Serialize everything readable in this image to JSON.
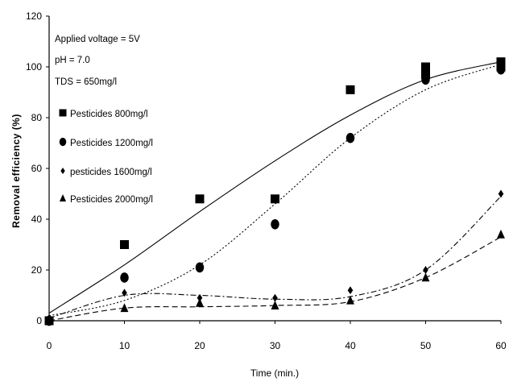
{
  "chart_data": {
    "type": "scatter",
    "xlabel": "Time (min.)",
    "ylabel": "Removal efficiency (%)",
    "xlim": [
      0,
      60
    ],
    "ylim": [
      0,
      120
    ],
    "x_ticks": [
      0,
      10,
      20,
      30,
      40,
      50,
      60
    ],
    "y_ticks": [
      0,
      20,
      40,
      60,
      80,
      100,
      120
    ],
    "grid": false,
    "annotations": [
      "Applied voltage = 5V",
      "pH = 7.0",
      "TDS = 650mg/l"
    ],
    "legend_position": "upper-left",
    "series": [
      {
        "name": "Pesticides 800mg/l",
        "marker": "square",
        "points": [
          [
            0,
            0
          ],
          [
            10,
            30
          ],
          [
            20,
            48
          ],
          [
            30,
            48
          ],
          [
            40,
            91
          ],
          [
            50,
            100
          ],
          [
            50,
            97
          ],
          [
            60,
            102
          ],
          [
            60,
            100
          ]
        ],
        "curve_x": [
          0,
          10,
          20,
          30,
          40,
          50,
          60
        ],
        "curve_y": [
          3,
          22,
          43,
          63,
          81,
          95,
          102
        ],
        "curve_style": "solid"
      },
      {
        "name": "Pesticides 1200mg/l",
        "marker": "circle",
        "points": [
          [
            0,
            0
          ],
          [
            10,
            17
          ],
          [
            20,
            21
          ],
          [
            30,
            38
          ],
          [
            40,
            72
          ],
          [
            50,
            95
          ],
          [
            60,
            99
          ]
        ],
        "curve_x": [
          0,
          10,
          20,
          30,
          40,
          50,
          60
        ],
        "curve_y": [
          2,
          8,
          22,
          46,
          72,
          91,
          101
        ],
        "curve_style": "dotted"
      },
      {
        "name": "pesticides 1600mg/l",
        "marker": "diamond",
        "points": [
          [
            0,
            1
          ],
          [
            10,
            11
          ],
          [
            20,
            9
          ],
          [
            30,
            9
          ],
          [
            40,
            12
          ],
          [
            50,
            20
          ],
          [
            60,
            50
          ]
        ],
        "curve_x": [
          0,
          10,
          20,
          30,
          40,
          50,
          60
        ],
        "curve_y": [
          1,
          10,
          10,
          8.5,
          9.5,
          20,
          49
        ],
        "curve_style": "dash-dot"
      },
      {
        "name": "Pesticides 2000mg/l",
        "marker": "triangle",
        "points": [
          [
            0,
            0
          ],
          [
            10,
            5
          ],
          [
            20,
            7
          ],
          [
            30,
            6
          ],
          [
            40,
            8
          ],
          [
            50,
            17
          ],
          [
            60,
            34
          ]
        ],
        "curve_x": [
          0,
          10,
          20,
          30,
          40,
          50,
          60
        ],
        "curve_y": [
          0,
          5,
          5.5,
          6,
          7.5,
          17,
          33
        ],
        "curve_style": "dashed"
      }
    ]
  }
}
